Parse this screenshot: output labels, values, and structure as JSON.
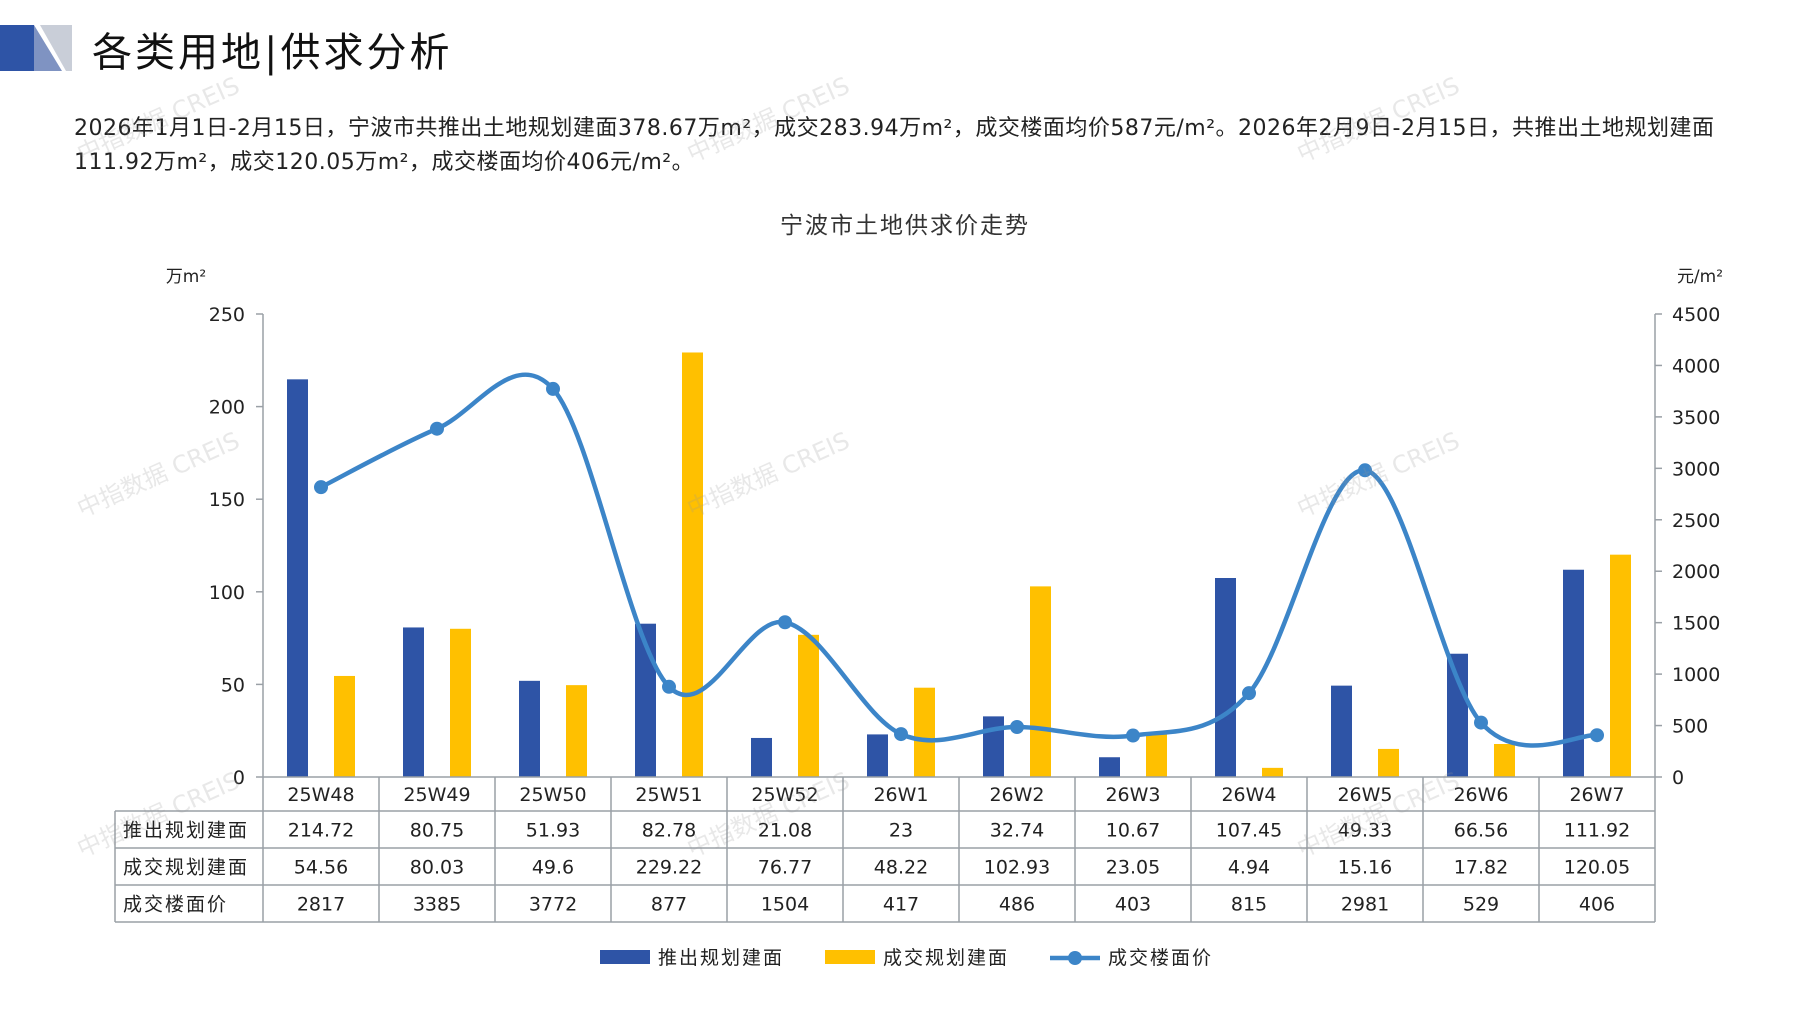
{
  "header": {
    "title": "各类用地|供求分析"
  },
  "summary": "2026年1月1日-2月15日，宁波市共推出土地规划建面378.67万m²，成交283.94万m²，成交楼面均价587元/m²。2026年2月9日-2月15日，共推出土地规划建面111.92万m²，成交120.05万m²，成交楼面均价406元/m²。",
  "watermark": "中指数据 CREIS",
  "colors": {
    "supply": "#2E54A6",
    "deal": "#FFC000",
    "price": "#3C85C8",
    "grid": "#9aa0a6"
  },
  "chart_data": {
    "type": "bar",
    "title": "宁波市土地供求价走势",
    "y_left_unit": "万m²",
    "y_right_unit": "元/m²",
    "ylim_left": [
      0,
      250
    ],
    "ylim_right": [
      0,
      4500
    ],
    "y_left_ticks": [
      "0",
      "50",
      "100",
      "150",
      "200",
      "250"
    ],
    "y_right_ticks": [
      "0",
      "500",
      "1000",
      "1500",
      "2000",
      "2500",
      "3000",
      "3500",
      "4000",
      "4500"
    ],
    "categories": [
      "25W48",
      "25W49",
      "25W50",
      "25W51",
      "25W52",
      "26W1",
      "26W2",
      "26W3",
      "26W4",
      "26W5",
      "26W6",
      "26W7"
    ],
    "series": [
      {
        "name": "推出规划建面",
        "type": "bar",
        "axis": "left",
        "values": [
          214.72,
          80.75,
          51.93,
          82.78,
          21.08,
          23,
          32.74,
          10.67,
          107.45,
          49.33,
          66.56,
          111.92
        ],
        "labels": [
          "214.72",
          "80.75",
          "51.93",
          "82.78",
          "21.08",
          "23",
          "32.74",
          "10.67",
          "107.45",
          "49.33",
          "66.56",
          "111.92"
        ]
      },
      {
        "name": "成交规划建面",
        "type": "bar",
        "axis": "left",
        "values": [
          54.56,
          80.03,
          49.6,
          229.22,
          76.77,
          48.22,
          102.93,
          23.05,
          4.94,
          15.16,
          17.82,
          120.05
        ],
        "labels": [
          "54.56",
          "80.03",
          "49.6",
          "229.22",
          "76.77",
          "48.22",
          "102.93",
          "23.05",
          "4.94",
          "15.16",
          "17.82",
          "120.05"
        ]
      },
      {
        "name": "成交楼面价",
        "type": "line",
        "axis": "right",
        "values": [
          2817,
          3385,
          3772,
          877,
          1504,
          417,
          486,
          403,
          815,
          2981,
          529,
          406
        ],
        "labels": [
          "2817",
          "3385",
          "3772",
          "877",
          "1504",
          "417",
          "486",
          "403",
          "815",
          "2981",
          "529",
          "406"
        ]
      }
    ],
    "legend_position": "bottom",
    "data_table": true
  }
}
